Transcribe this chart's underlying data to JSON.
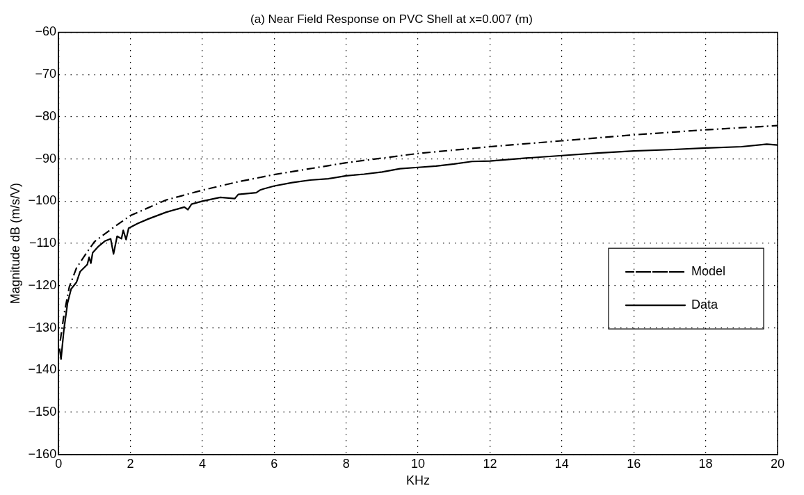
{
  "chart_data": {
    "type": "line",
    "title": "(a) Near Field Response on PVC Shell at x=0.007 (m)",
    "xlabel": "KHz",
    "ylabel": "Magnitude dB (m/s/V)",
    "xlim": [
      0,
      20
    ],
    "xticks": [
      0,
      2,
      4,
      6,
      8,
      10,
      12,
      14,
      16,
      18,
      20
    ],
    "ylim": [
      -160,
      -60
    ],
    "yticks": [
      -160,
      -150,
      -140,
      -130,
      -120,
      -110,
      -100,
      -90,
      -80,
      -70,
      -60
    ],
    "grid": true,
    "legend": "right",
    "marker": "none",
    "series": [
      {
        "name": "Model",
        "color": "#000000",
        "line_style": "dashdot",
        "x": [
          0.05,
          0.15,
          0.3,
          0.5,
          0.8,
          1,
          1.5,
          2,
          3,
          4,
          5,
          6,
          8,
          10,
          12,
          14,
          16,
          18,
          20
        ],
        "values": [
          -133,
          -127,
          -120.3,
          -115.8,
          -112,
          -109.6,
          -106.4,
          -103.4,
          -99.7,
          -97.4,
          -95.4,
          -93.7,
          -90.9,
          -88.7,
          -87.1,
          -85.7,
          -84.3,
          -83.1,
          -82.1
        ]
      },
      {
        "name": "Data",
        "color": "#000000",
        "line_style": "solid",
        "x": [
          0.03,
          0.07,
          0.15,
          0.25,
          0.35,
          0.5,
          0.6,
          0.8,
          0.85,
          0.9,
          0.95,
          1.1,
          1.3,
          1.45,
          1.53,
          1.63,
          1.75,
          1.8,
          1.88,
          1.95,
          2.2,
          2.5,
          3,
          3.5,
          3.6,
          3.7,
          4,
          4.5,
          4.9,
          5,
          5.5,
          5.6,
          5.7,
          6,
          6.5,
          7,
          7.5,
          8,
          8.5,
          9,
          9.5,
          10,
          10.5,
          11,
          11.5,
          12,
          13,
          14,
          15,
          16,
          17,
          18,
          19,
          19.7,
          20
        ],
        "values": [
          -134.9,
          -137.4,
          -130.4,
          -124.2,
          -120.8,
          -119.2,
          -116.7,
          -115,
          -113.3,
          -114.7,
          -112.2,
          -110.8,
          -109.4,
          -108.9,
          -112.5,
          -108.3,
          -108.9,
          -106.9,
          -109.1,
          -106.4,
          -105.3,
          -104.2,
          -102.6,
          -101.4,
          -102,
          -100.7,
          -100,
          -99.1,
          -99.4,
          -98.4,
          -98,
          -97.4,
          -97.1,
          -96.4,
          -95.6,
          -95,
          -94.7,
          -94,
          -93.6,
          -93.1,
          -92.3,
          -92,
          -91.7,
          -91.2,
          -90.6,
          -90.5,
          -89.8,
          -89.2,
          -88.6,
          -88.1,
          -87.8,
          -87.4,
          -87.1,
          -86.5,
          -86.7
        ]
      }
    ]
  }
}
